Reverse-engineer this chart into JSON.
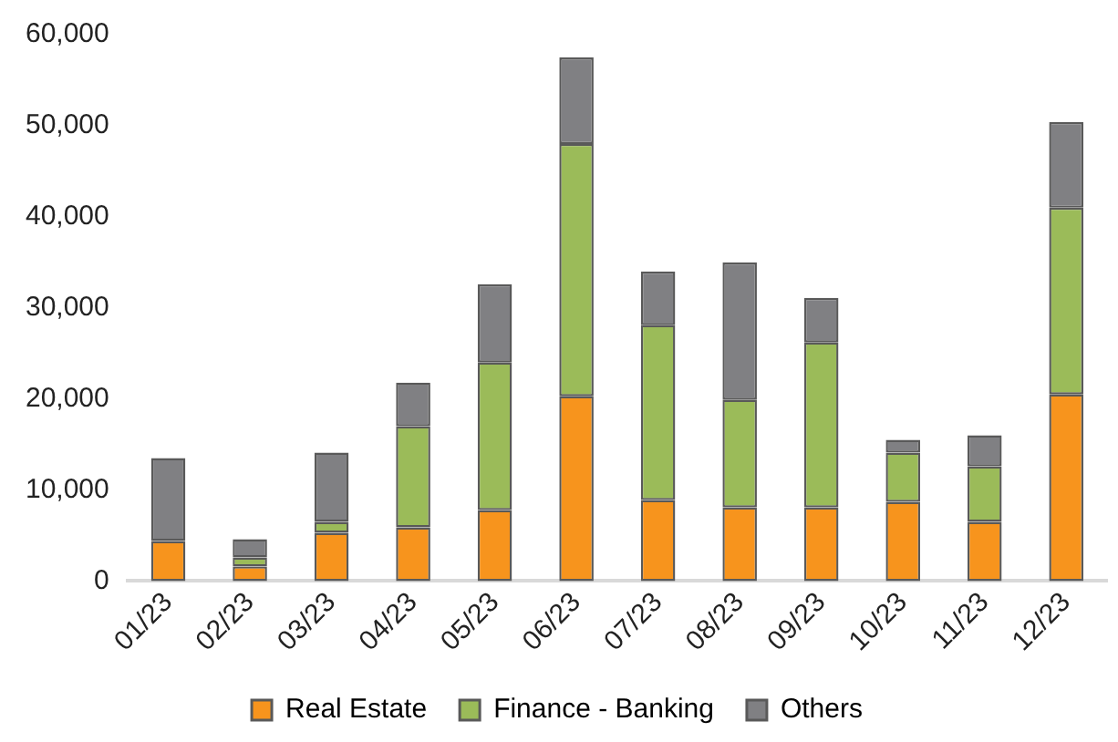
{
  "chart_data": {
    "type": "bar",
    "stacked": true,
    "categories": [
      "01/23",
      "02/23",
      "03/23",
      "04/23",
      "05/23",
      "06/23",
      "07/23",
      "08/23",
      "09/23",
      "10/23",
      "11/23",
      "12/23"
    ],
    "series": [
      {
        "name": "Real Estate",
        "color": "#f7941d",
        "values": [
          4400,
          1600,
          5300,
          5900,
          7800,
          20300,
          8900,
          8100,
          8100,
          8700,
          6500,
          20500
        ]
      },
      {
        "name": "Finance - Banking",
        "color": "#9bbb59",
        "values": [
          0,
          1000,
          1200,
          11100,
          16200,
          27700,
          19200,
          11800,
          18100,
          5400,
          6100,
          20500
        ]
      },
      {
        "name": "Others",
        "color": "#808083",
        "values": [
          9100,
          2000,
          7600,
          4800,
          8600,
          9500,
          5900,
          15100,
          4900,
          1400,
          3400,
          9400
        ]
      }
    ],
    "ylim": [
      0,
      60000
    ],
    "yticks": [
      0,
      {
        "value": 10000,
        "label": "10,000"
      },
      {
        "value": 20000,
        "label": "20,000"
      },
      {
        "value": 30000,
        "label": "30,000"
      },
      {
        "value": 40000,
        "label": "40,000"
      },
      {
        "value": 50000,
        "label": "50,000"
      },
      {
        "value": 60000,
        "label": "60,000"
      }
    ],
    "grid": false,
    "legend": "bottom"
  }
}
